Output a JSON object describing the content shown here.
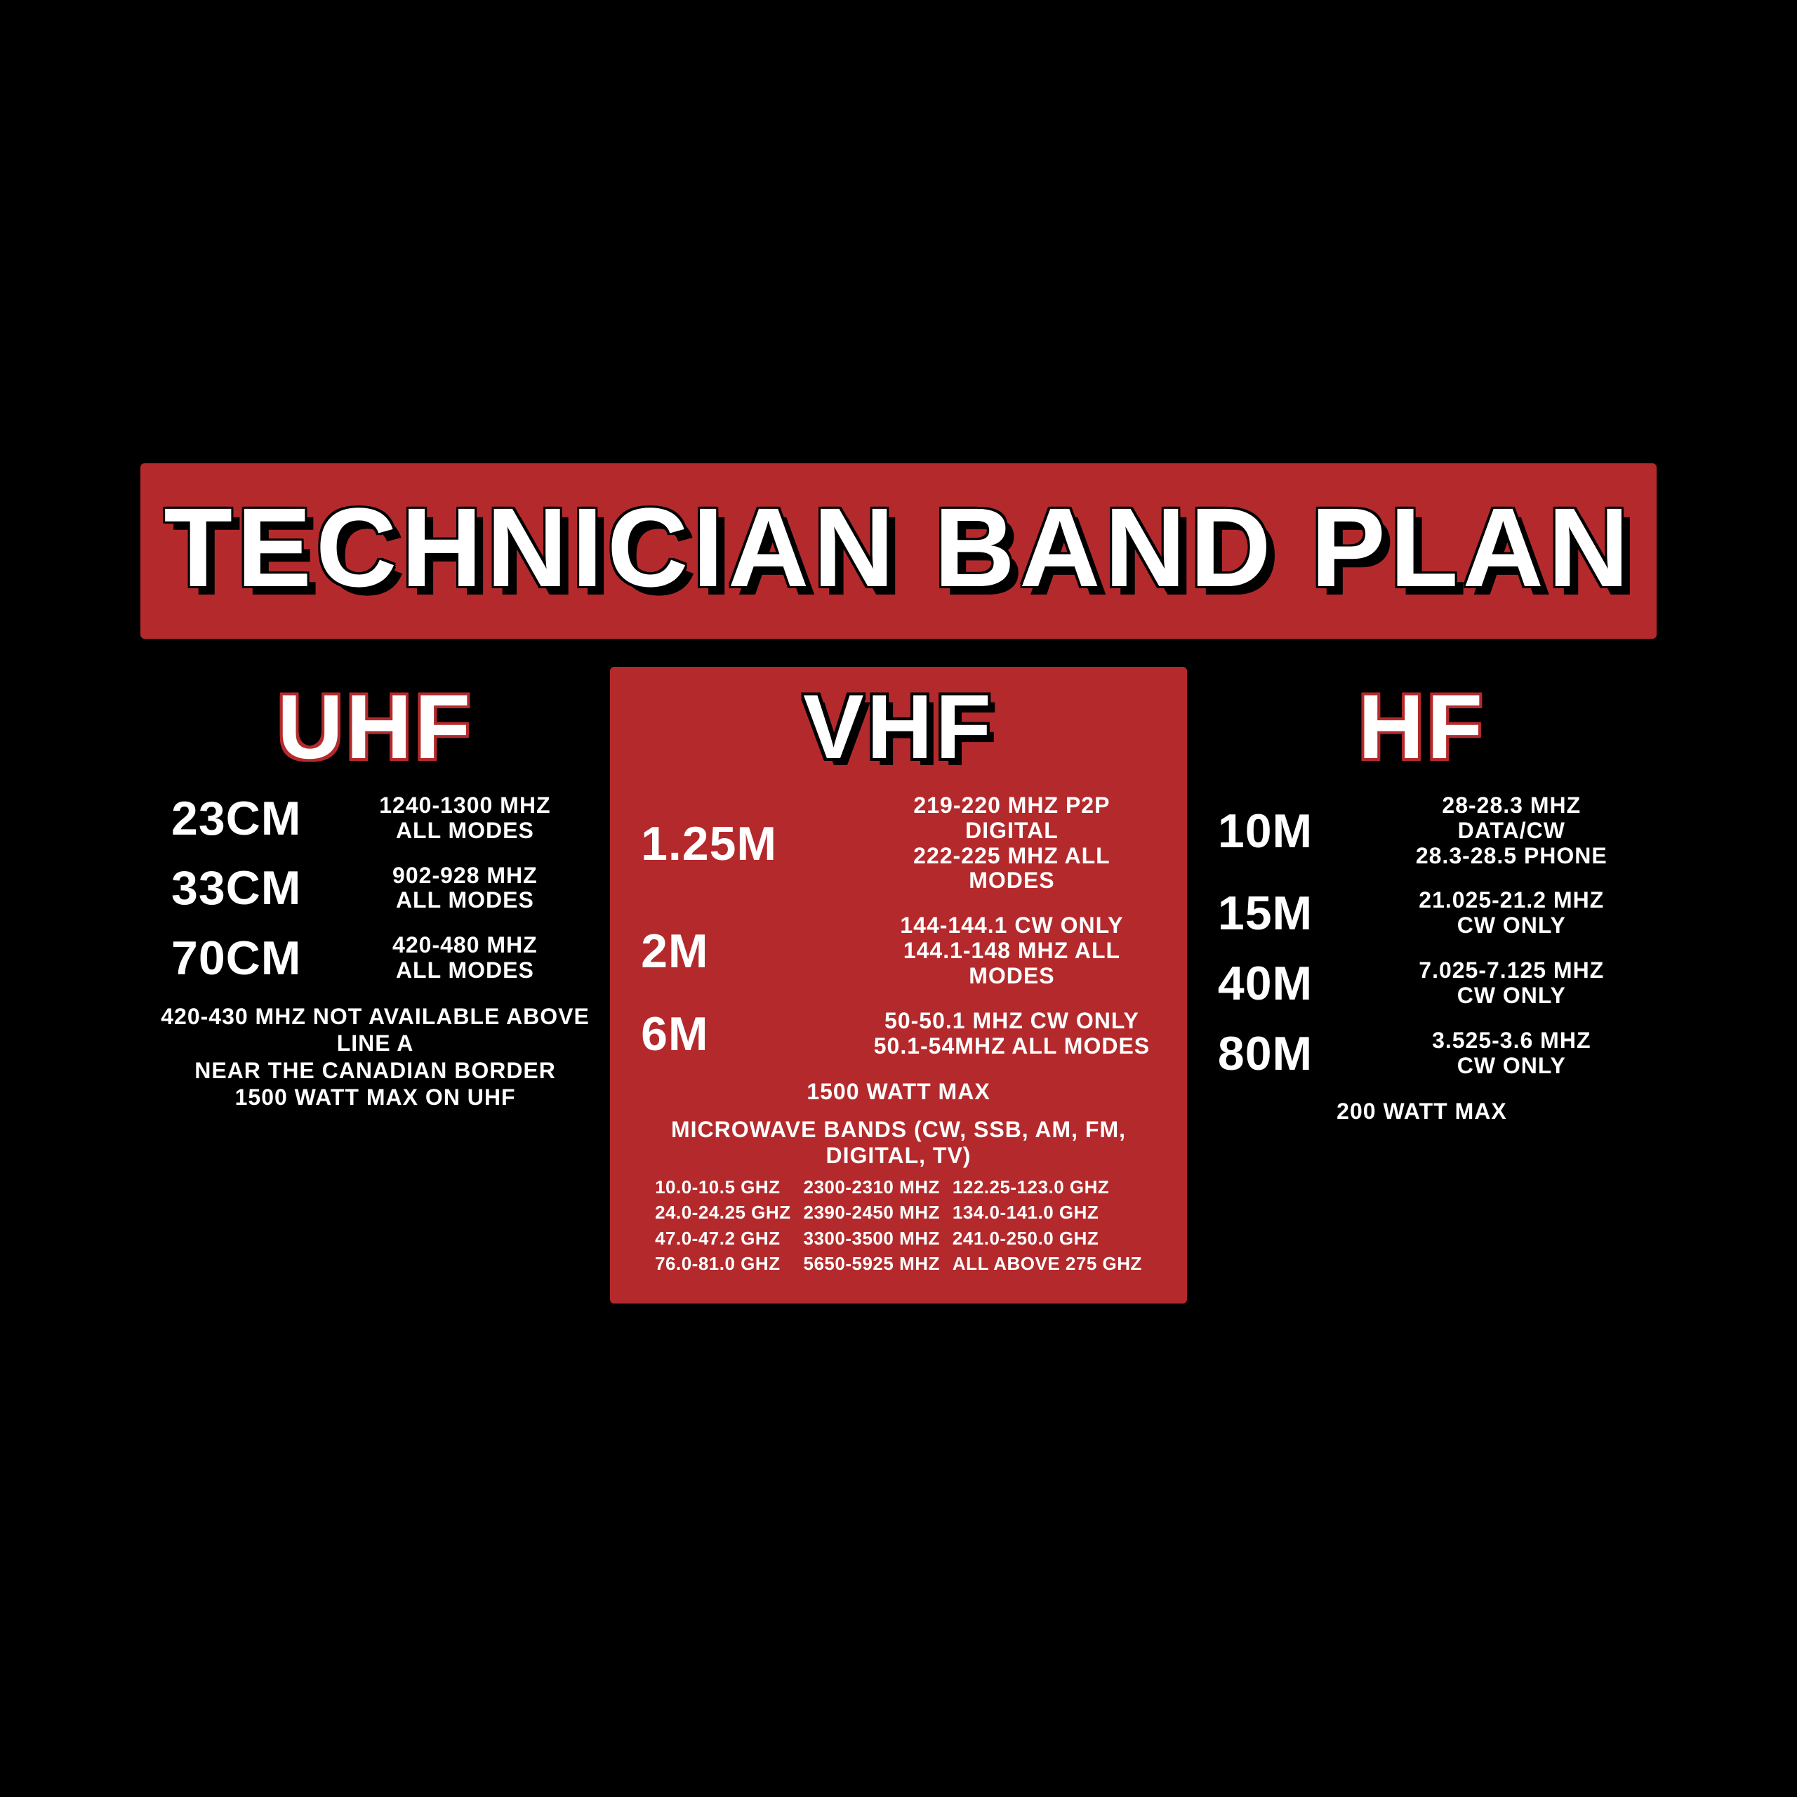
{
  "colors": {
    "background": "#000000",
    "panel": "#b42a2c",
    "text": "#ffffff",
    "outline_on_dark": "#b42a2c",
    "outline_on_red": "#000000"
  },
  "title": "TECHNICIAN BAND PLAN",
  "columns": {
    "uhf": {
      "heading": "UHF",
      "bands": [
        {
          "name": "23CM",
          "lines": [
            "1240-1300 MHZ",
            "ALL MODES"
          ]
        },
        {
          "name": "33CM",
          "lines": [
            "902-928 MHZ",
            "ALL MODES"
          ]
        },
        {
          "name": "70CM",
          "lines": [
            "420-480 MHZ",
            "ALL MODES"
          ]
        }
      ],
      "footnote": [
        "420-430 MHZ NOT AVAILABLE ABOVE LINE A",
        "NEAR THE CANADIAN BORDER",
        "1500 WATT MAX ON UHF"
      ]
    },
    "vhf": {
      "heading": "VHF",
      "bands": [
        {
          "name": "1.25M",
          "lines": [
            "219-220 MHZ P2P DIGITAL",
            "222-225 MHZ ALL MODES"
          ]
        },
        {
          "name": "2M",
          "lines": [
            "144-144.1 CW ONLY",
            "144.1-148 MHZ ALL MODES"
          ]
        },
        {
          "name": "6M",
          "lines": [
            "50-50.1 MHZ CW ONLY",
            "50.1-54MHZ ALL MODES"
          ]
        }
      ],
      "footnote": [
        "1500 WATT MAX"
      ],
      "microwave": {
        "title": "MICROWAVE BANDS (CW, SSB, AM, FM, DIGITAL, TV)",
        "cells": [
          "10.0-10.5 GHZ",
          "2300-2310 MHZ",
          "122.25-123.0 GHZ",
          "24.0-24.25 GHZ",
          "2390-2450 MHZ",
          "134.0-141.0 GHZ",
          "47.0-47.2 GHZ",
          "3300-3500 MHZ",
          "241.0-250.0 GHZ",
          "76.0-81.0 GHZ",
          "5650-5925 MHZ",
          "ALL ABOVE 275 GHZ"
        ]
      }
    },
    "hf": {
      "heading": "HF",
      "bands": [
        {
          "name": "10M",
          "lines": [
            "28-28.3 MHZ DATA/CW",
            "28.3-28.5 PHONE"
          ]
        },
        {
          "name": "15M",
          "lines": [
            "21.025-21.2 MHZ",
            "CW ONLY"
          ]
        },
        {
          "name": "40M",
          "lines": [
            "7.025-7.125 MHZ",
            "CW ONLY"
          ]
        },
        {
          "name": "80M",
          "lines": [
            "3.525-3.6 MHZ",
            "CW ONLY"
          ]
        }
      ],
      "footnote": [
        "200 WATT MAX"
      ]
    }
  }
}
